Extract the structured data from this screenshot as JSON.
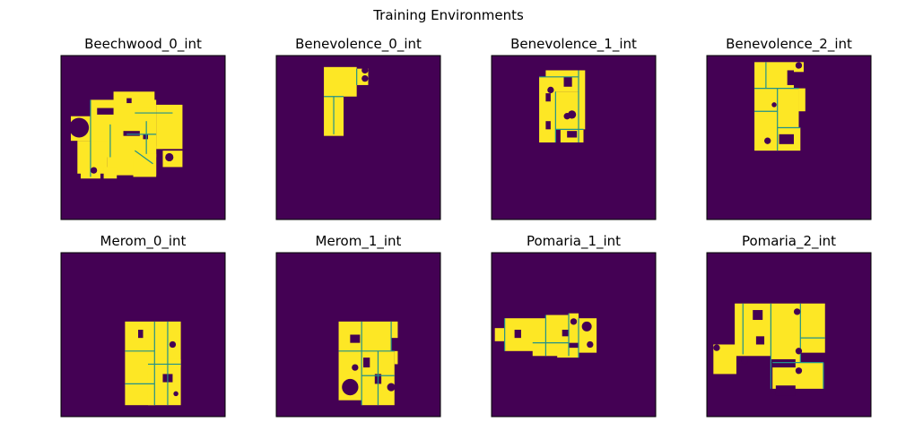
{
  "figure": {
    "title": "Training Environments"
  },
  "colors": {
    "background": "#440154",
    "floor": "#fde725",
    "wall": "#21918c",
    "frame": "#000000"
  },
  "panels": [
    {
      "title": "Beechwood_0_int",
      "icon": "floorplan-map",
      "floor": [
        [
          0.06,
          0.37,
          0.18,
          0.15
        ],
        [
          0.18,
          0.27,
          0.4,
          0.35
        ],
        [
          0.32,
          0.22,
          0.25,
          0.1
        ],
        [
          0.58,
          0.3,
          0.16,
          0.27
        ],
        [
          0.1,
          0.52,
          0.18,
          0.2
        ],
        [
          0.28,
          0.55,
          0.3,
          0.18
        ],
        [
          0.44,
          0.6,
          0.14,
          0.14
        ],
        [
          0.62,
          0.58,
          0.12,
          0.1
        ],
        [
          0.12,
          0.7,
          0.12,
          0.05
        ],
        [
          0.26,
          0.68,
          0.08,
          0.07
        ]
      ],
      "holes": [
        [
          0.22,
          0.32,
          0.1,
          0.04
        ],
        [
          0.38,
          0.46,
          0.1,
          0.03
        ],
        [
          0.4,
          0.26,
          0.03,
          0.03
        ],
        [
          0.5,
          0.48,
          0.03,
          0.03
        ]
      ],
      "walls": [
        [
          0.18,
          0.27,
          0.18,
          0.74
        ],
        [
          0.3,
          0.42,
          0.3,
          0.62
        ],
        [
          0.45,
          0.35,
          0.68,
          0.35
        ],
        [
          0.52,
          0.4,
          0.52,
          0.6
        ],
        [
          0.45,
          0.58,
          0.56,
          0.66
        ],
        [
          0.4,
          0.48,
          0.58,
          0.48
        ]
      ],
      "dots": [
        [
          0.11,
          0.44,
          0.06
        ],
        [
          0.66,
          0.62,
          0.025
        ],
        [
          0.2,
          0.7,
          0.02
        ]
      ]
    },
    {
      "title": "Benevolence_0_int",
      "icon": "floorplan-map",
      "floor": [
        [
          0.29,
          0.07,
          0.2,
          0.18
        ],
        [
          0.49,
          0.08,
          0.07,
          0.1
        ],
        [
          0.29,
          0.25,
          0.12,
          0.24
        ]
      ],
      "holes": [],
      "walls": [
        [
          0.35,
          0.25,
          0.35,
          0.48
        ],
        [
          0.29,
          0.25,
          0.41,
          0.25
        ],
        [
          0.49,
          0.08,
          0.49,
          0.18
        ]
      ],
      "dots": [
        [
          0.54,
          0.09,
          0.02
        ],
        [
          0.54,
          0.14,
          0.02
        ]
      ]
    },
    {
      "title": "Benevolence_1_int",
      "icon": "floorplan-map",
      "floor": [
        [
          0.33,
          0.09,
          0.2,
          0.13
        ],
        [
          0.29,
          0.13,
          0.1,
          0.4
        ],
        [
          0.39,
          0.22,
          0.17,
          0.23
        ],
        [
          0.42,
          0.45,
          0.14,
          0.08
        ],
        [
          0.53,
          0.09,
          0.04,
          0.36
        ]
      ],
      "holes": [
        [
          0.44,
          0.13,
          0.05,
          0.06
        ],
        [
          0.33,
          0.23,
          0.03,
          0.05
        ],
        [
          0.33,
          0.4,
          0.03,
          0.05
        ],
        [
          0.46,
          0.46,
          0.06,
          0.04
        ]
      ],
      "walls": [
        [
          0.29,
          0.13,
          0.53,
          0.13
        ],
        [
          0.53,
          0.09,
          0.53,
          0.53
        ],
        [
          0.39,
          0.22,
          0.39,
          0.53
        ],
        [
          0.39,
          0.45,
          0.56,
          0.45
        ]
      ],
      "dots": [
        [
          0.49,
          0.36,
          0.025
        ],
        [
          0.46,
          0.37,
          0.02
        ],
        [
          0.36,
          0.21,
          0.02
        ]
      ]
    },
    {
      "title": "Benevolence_2_int",
      "icon": "floorplan-map",
      "floor": [
        [
          0.29,
          0.04,
          0.24,
          0.16
        ],
        [
          0.53,
          0.04,
          0.06,
          0.06
        ],
        [
          0.29,
          0.2,
          0.14,
          0.38
        ],
        [
          0.43,
          0.2,
          0.13,
          0.24
        ],
        [
          0.43,
          0.44,
          0.14,
          0.14
        ],
        [
          0.56,
          0.2,
          0.04,
          0.14
        ]
      ],
      "holes": [
        [
          0.49,
          0.09,
          0.04,
          0.09
        ],
        [
          0.44,
          0.48,
          0.09,
          0.06
        ]
      ],
      "walls": [
        [
          0.29,
          0.2,
          0.56,
          0.2
        ],
        [
          0.43,
          0.2,
          0.43,
          0.58
        ],
        [
          0.29,
          0.34,
          0.43,
          0.34
        ],
        [
          0.43,
          0.44,
          0.57,
          0.44
        ],
        [
          0.36,
          0.04,
          0.36,
          0.2
        ]
      ],
      "dots": [
        [
          0.56,
          0.06,
          0.02
        ],
        [
          0.37,
          0.52,
          0.02
        ],
        [
          0.41,
          0.3,
          0.015
        ]
      ]
    },
    {
      "title": "Merom_0_int",
      "icon": "floorplan-map",
      "floor": [
        [
          0.39,
          0.42,
          0.18,
          0.38
        ],
        [
          0.57,
          0.42,
          0.16,
          0.28
        ],
        [
          0.39,
          0.8,
          0.18,
          0.13
        ],
        [
          0.53,
          0.65,
          0.2,
          0.28
        ]
      ],
      "holes": [
        [
          0.47,
          0.47,
          0.03,
          0.05
        ],
        [
          0.62,
          0.74,
          0.06,
          0.05
        ]
      ],
      "walls": [
        [
          0.57,
          0.42,
          0.57,
          0.93
        ],
        [
          0.39,
          0.6,
          0.57,
          0.6
        ],
        [
          0.53,
          0.68,
          0.73,
          0.68
        ],
        [
          0.39,
          0.8,
          0.57,
          0.8
        ],
        [
          0.65,
          0.42,
          0.65,
          0.68
        ],
        [
          0.65,
          0.68,
          0.65,
          0.93
        ]
      ],
      "dots": [
        [
          0.68,
          0.56,
          0.02
        ],
        [
          0.7,
          0.86,
          0.015
        ]
      ]
    },
    {
      "title": "Merom_1_int",
      "icon": "floorplan-map",
      "floor": [
        [
          0.38,
          0.42,
          0.32,
          0.18
        ],
        [
          0.7,
          0.42,
          0.04,
          0.1
        ],
        [
          0.38,
          0.6,
          0.14,
          0.3
        ],
        [
          0.52,
          0.6,
          0.2,
          0.33
        ],
        [
          0.72,
          0.6,
          0.02,
          0.08
        ]
      ],
      "holes": [
        [
          0.45,
          0.5,
          0.06,
          0.05
        ],
        [
          0.6,
          0.74,
          0.04,
          0.06
        ],
        [
          0.53,
          0.64,
          0.04,
          0.06
        ]
      ],
      "walls": [
        [
          0.38,
          0.6,
          0.72,
          0.6
        ],
        [
          0.52,
          0.42,
          0.52,
          0.93
        ],
        [
          0.62,
          0.6,
          0.62,
          0.93
        ],
        [
          0.52,
          0.75,
          0.72,
          0.75
        ],
        [
          0.7,
          0.42,
          0.7,
          0.6
        ]
      ],
      "dots": [
        [
          0.45,
          0.82,
          0.05
        ],
        [
          0.7,
          0.82,
          0.025
        ],
        [
          0.48,
          0.7,
          0.02
        ]
      ]
    },
    {
      "title": "Pomaria_1_int",
      "icon": "floorplan-map",
      "floor": [
        [
          0.02,
          0.46,
          0.08,
          0.08
        ],
        [
          0.08,
          0.4,
          0.25,
          0.2
        ],
        [
          0.33,
          0.38,
          0.14,
          0.17
        ],
        [
          0.47,
          0.37,
          0.06,
          0.18
        ],
        [
          0.53,
          0.4,
          0.11,
          0.21
        ],
        [
          0.25,
          0.55,
          0.22,
          0.08
        ],
        [
          0.4,
          0.58,
          0.13,
          0.06
        ]
      ],
      "holes": [
        [
          0.14,
          0.47,
          0.04,
          0.05
        ],
        [
          0.43,
          0.47,
          0.04,
          0.04
        ]
      ],
      "walls": [
        [
          0.08,
          0.4,
          0.08,
          0.6
        ],
        [
          0.33,
          0.38,
          0.33,
          0.63
        ],
        [
          0.47,
          0.37,
          0.47,
          0.63
        ],
        [
          0.53,
          0.4,
          0.53,
          0.64
        ],
        [
          0.25,
          0.55,
          0.47,
          0.55
        ]
      ],
      "dots": [
        [
          0.58,
          0.45,
          0.03
        ],
        [
          0.5,
          0.42,
          0.02
        ],
        [
          0.6,
          0.56,
          0.02
        ]
      ]
    },
    {
      "title": "Pomaria_2_int",
      "icon": "floorplan-map",
      "floor": [
        [
          0.17,
          0.31,
          0.22,
          0.32
        ],
        [
          0.39,
          0.31,
          0.18,
          0.36
        ],
        [
          0.57,
          0.31,
          0.15,
          0.3
        ],
        [
          0.04,
          0.56,
          0.14,
          0.18
        ],
        [
          0.4,
          0.67,
          0.31,
          0.16
        ]
      ],
      "holes": [
        [
          0.28,
          0.35,
          0.06,
          0.06
        ],
        [
          0.3,
          0.51,
          0.05,
          0.05
        ],
        [
          0.38,
          0.65,
          0.16,
          0.05
        ],
        [
          0.42,
          0.81,
          0.12,
          0.06
        ]
      ],
      "walls": [
        [
          0.39,
          0.31,
          0.39,
          0.83
        ],
        [
          0.57,
          0.31,
          0.57,
          0.67
        ],
        [
          0.22,
          0.31,
          0.22,
          0.62
        ],
        [
          0.4,
          0.67,
          0.71,
          0.67
        ],
        [
          0.57,
          0.52,
          0.72,
          0.52
        ],
        [
          0.71,
          0.67,
          0.71,
          0.83
        ]
      ],
      "dots": [
        [
          0.06,
          0.58,
          0.02
        ],
        [
          0.23,
          0.66,
          0.02
        ],
        [
          0.55,
          0.36,
          0.02
        ],
        [
          0.56,
          0.6,
          0.02
        ],
        [
          0.56,
          0.72,
          0.02
        ]
      ]
    }
  ]
}
